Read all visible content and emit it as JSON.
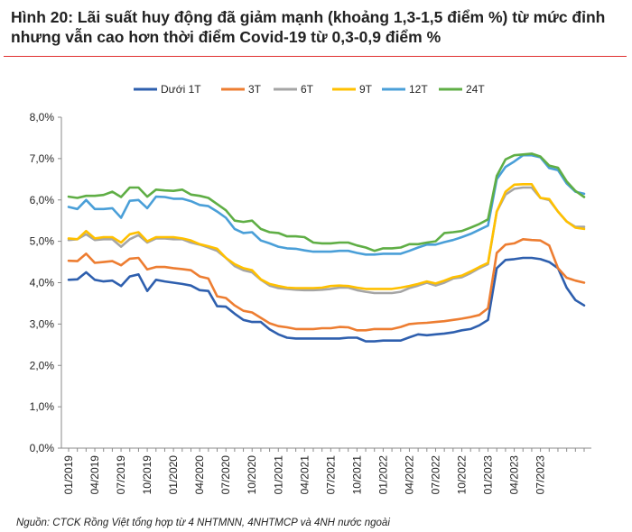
{
  "title": "Hình 20: Lãi suất huy động đã giảm mạnh (khoảng 1,3-1,5 điểm %) từ mức đỉnh nhưng vẫn cao hơn thời điểm Covid-19 từ 0,3-0,9 điểm %",
  "source": "Nguồn: CTCK Rồng Việt tổng hợp từ 4 NHTMNN, 4NHTMCP và 4NH nước ngoài",
  "chart_data": {
    "type": "line",
    "title": "",
    "xlabel": "",
    "ylabel": "",
    "ylim": [
      0,
      8
    ],
    "y_ticks": [
      0,
      1,
      2,
      3,
      4,
      5,
      6,
      7,
      8
    ],
    "y_tick_labels": [
      "0,0%",
      "1,0%",
      "2,0%",
      "3,0%",
      "4,0%",
      "5,0%",
      "6,0%",
      "7,0%",
      "8,0%"
    ],
    "x_tick_labels": [
      "01/2019",
      "04/2019",
      "07/2019",
      "10/2019",
      "01/2020",
      "04/2020",
      "07/2020",
      "10/2020",
      "01/2021",
      "04/2021",
      "07/2021",
      "10/2021",
      "01/2022",
      "04/2022",
      "07/2022",
      "10/2022",
      "01/2023",
      "04/2023",
      "07/2023"
    ],
    "x_tick_every": 3,
    "legend_position": "top",
    "series": [
      {
        "name": "Dưới 1T",
        "color": "#2e5fae",
        "values": [
          4.07,
          4.08,
          4.25,
          4.07,
          4.03,
          4.05,
          3.92,
          4.15,
          4.2,
          3.8,
          4.07,
          4.03,
          4.0,
          3.97,
          3.93,
          3.82,
          3.8,
          3.43,
          3.42,
          3.25,
          3.1,
          3.05,
          3.05,
          2.87,
          2.75,
          2.67,
          2.65,
          2.65,
          2.65,
          2.65,
          2.65,
          2.65,
          2.67,
          2.67,
          2.58,
          2.58,
          2.6,
          2.6,
          2.6,
          2.68,
          2.75,
          2.73,
          2.75,
          2.77,
          2.8,
          2.85,
          2.88,
          2.97,
          3.1,
          4.35,
          4.55,
          4.57,
          4.6,
          4.6,
          4.57,
          4.5,
          4.35,
          3.88,
          3.58,
          3.45
        ]
      },
      {
        "name": "3T",
        "color": "#ed7d31",
        "values": [
          4.53,
          4.52,
          4.7,
          4.48,
          4.5,
          4.52,
          4.42,
          4.58,
          4.6,
          4.32,
          4.38,
          4.38,
          4.35,
          4.33,
          4.3,
          4.15,
          4.1,
          3.67,
          3.63,
          3.45,
          3.32,
          3.28,
          3.15,
          3.02,
          2.95,
          2.92,
          2.88,
          2.88,
          2.88,
          2.9,
          2.9,
          2.93,
          2.92,
          2.85,
          2.85,
          2.88,
          2.88,
          2.88,
          2.93,
          3.0,
          3.02,
          3.03,
          3.05,
          3.07,
          3.1,
          3.13,
          3.17,
          3.22,
          3.38,
          4.72,
          4.92,
          4.95,
          5.05,
          5.03,
          5.02,
          4.9,
          4.35,
          4.12,
          4.05,
          4.0
        ]
      },
      {
        "name": "6T",
        "color": "#a5a5a5",
        "values": [
          5.03,
          5.05,
          5.17,
          5.03,
          5.05,
          5.05,
          4.87,
          5.05,
          5.15,
          4.97,
          5.07,
          5.07,
          5.05,
          5.05,
          4.97,
          4.92,
          4.85,
          4.77,
          4.6,
          4.4,
          4.3,
          4.25,
          4.07,
          3.93,
          3.87,
          3.85,
          3.83,
          3.82,
          3.82,
          3.83,
          3.85,
          3.88,
          3.88,
          3.82,
          3.78,
          3.75,
          3.75,
          3.75,
          3.78,
          3.87,
          3.93,
          4.0,
          3.93,
          4.0,
          4.1,
          4.13,
          4.23,
          4.35,
          4.45,
          5.72,
          6.13,
          6.27,
          6.3,
          6.3,
          6.05,
          6.0,
          5.72,
          5.48,
          5.35,
          5.35
        ]
      },
      {
        "name": "9T",
        "color": "#ffc000",
        "values": [
          5.07,
          5.05,
          5.25,
          5.07,
          5.1,
          5.1,
          4.97,
          5.17,
          5.22,
          5.0,
          5.1,
          5.1,
          5.1,
          5.07,
          5.02,
          4.93,
          4.88,
          4.82,
          4.6,
          4.45,
          4.35,
          4.3,
          4.08,
          3.97,
          3.92,
          3.88,
          3.87,
          3.87,
          3.87,
          3.88,
          3.92,
          3.93,
          3.92,
          3.88,
          3.85,
          3.85,
          3.85,
          3.85,
          3.88,
          3.92,
          3.97,
          4.03,
          3.98,
          4.05,
          4.13,
          4.17,
          4.27,
          4.38,
          4.48,
          5.72,
          6.2,
          6.37,
          6.38,
          6.38,
          6.05,
          6.02,
          5.72,
          5.48,
          5.33,
          5.3
        ]
      },
      {
        "name": "12T",
        "color": "#4a9fd8",
        "values": [
          5.83,
          5.78,
          6.0,
          5.78,
          5.78,
          5.8,
          5.57,
          5.98,
          6.0,
          5.8,
          6.08,
          6.07,
          6.03,
          6.03,
          5.97,
          5.88,
          5.85,
          5.72,
          5.57,
          5.3,
          5.2,
          5.22,
          5.02,
          4.95,
          4.87,
          4.83,
          4.82,
          4.78,
          4.75,
          4.75,
          4.75,
          4.77,
          4.77,
          4.72,
          4.68,
          4.68,
          4.7,
          4.7,
          4.7,
          4.77,
          4.85,
          4.92,
          4.92,
          4.98,
          5.03,
          5.1,
          5.18,
          5.28,
          5.38,
          6.5,
          6.8,
          6.93,
          7.08,
          7.08,
          7.03,
          6.77,
          6.72,
          6.4,
          6.2,
          6.15
        ]
      },
      {
        "name": "24T",
        "color": "#5fae45",
        "values": [
          6.08,
          6.05,
          6.1,
          6.1,
          6.12,
          6.2,
          6.07,
          6.3,
          6.3,
          6.08,
          6.25,
          6.23,
          6.22,
          6.25,
          6.13,
          6.1,
          6.05,
          5.9,
          5.75,
          5.5,
          5.47,
          5.5,
          5.3,
          5.22,
          5.2,
          5.12,
          5.12,
          5.1,
          4.97,
          4.95,
          4.95,
          4.97,
          4.97,
          4.9,
          4.85,
          4.77,
          4.83,
          4.83,
          4.85,
          4.93,
          4.93,
          4.97,
          5.0,
          5.2,
          5.22,
          5.25,
          5.33,
          5.42,
          5.53,
          6.58,
          6.98,
          7.08,
          7.1,
          7.12,
          7.05,
          6.83,
          6.78,
          6.45,
          6.22,
          6.07
        ]
      }
    ]
  }
}
